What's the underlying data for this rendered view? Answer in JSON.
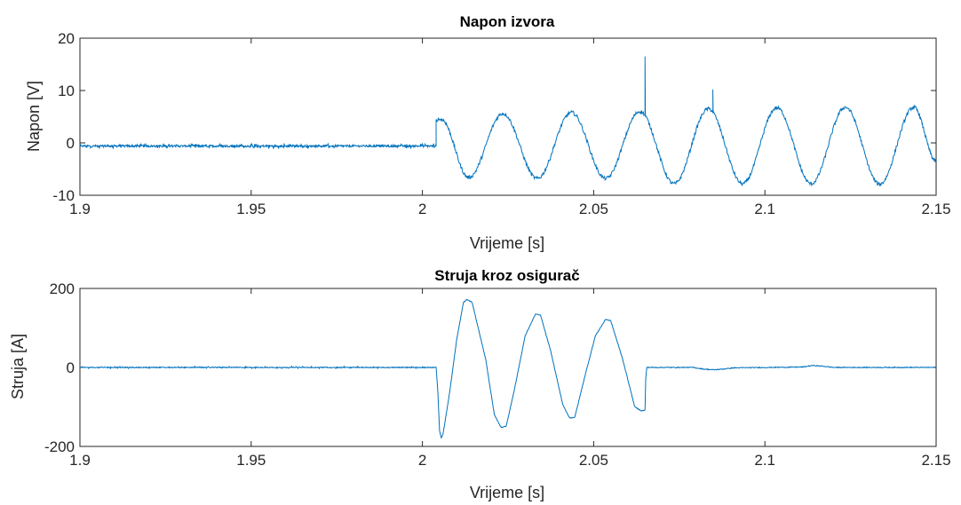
{
  "chart_data": [
    {
      "type": "line",
      "title": "Napon izvora",
      "xlabel": "Vrijeme [s]",
      "ylabel": "Napon [V]",
      "xlim": [
        1.9,
        2.15
      ],
      "ylim": [
        -10,
        20
      ],
      "xticks": [
        "1.9",
        "1.95",
        "2",
        "2.05",
        "2.1",
        "2.15"
      ],
      "yticks": [
        "-10",
        "0",
        "10",
        "20"
      ],
      "grid": false,
      "line_color": "#0072BD",
      "series": [
        {
          "pre_event": {
            "x_start": 1.9,
            "x_end": 2.004,
            "level": -0.6,
            "noise": 0.4
          },
          "event_jump": {
            "x": 2.004,
            "to": 4.5,
            "hold_until": 2.0055
          },
          "oscillation": {
            "x_start": 2.0055,
            "x_end": 2.15,
            "period": 0.02,
            "peaks": [
              {
                "x": 2.0235,
                "y": 5.6
              },
              {
                "x": 2.0435,
                "y": 5.8
              },
              {
                "x": 2.0635,
                "y": 6.0
              },
              {
                "x": 2.0835,
                "y": 6.5
              },
              {
                "x": 2.1035,
                "y": 6.7
              },
              {
                "x": 2.1235,
                "y": 6.8
              },
              {
                "x": 2.1435,
                "y": 6.8
              }
            ],
            "troughs": [
              {
                "x": 2.0135,
                "y": -6.6
              },
              {
                "x": 2.0335,
                "y": -6.8
              },
              {
                "x": 2.0535,
                "y": -6.8
              },
              {
                "x": 2.0735,
                "y": -7.8
              },
              {
                "x": 2.0935,
                "y": -7.8
              },
              {
                "x": 2.1135,
                "y": -7.8
              },
              {
                "x": 2.1335,
                "y": -7.9
              }
            ],
            "end_value": -3.5
          },
          "spikes": [
            {
              "x": 2.065,
              "y": 16.5
            },
            {
              "x": 2.0848,
              "y": 10.2
            }
          ]
        }
      ]
    },
    {
      "type": "line",
      "title": "Struja kroz osigurač",
      "xlabel": "Vrijeme [s]",
      "ylabel": "Struja [A]",
      "xlim": [
        1.9,
        2.15
      ],
      "ylim": [
        -200,
        200
      ],
      "xticks": [
        "1.9",
        "1.95",
        "2",
        "2.05",
        "2.1",
        "2.15"
      ],
      "yticks": [
        "-200",
        "0",
        "200"
      ],
      "grid": false,
      "line_color": "#0072BD",
      "series": [
        {
          "pre_event": {
            "x_start": 1.9,
            "x_end": 2.004,
            "level": 0,
            "noise": 2
          },
          "points": [
            [
              2.004,
              0
            ],
            [
              2.0045,
              -60
            ],
            [
              2.005,
              -160
            ],
            [
              2.0055,
              -178
            ],
            [
              2.006,
              -170
            ],
            [
              2.008,
              -60
            ],
            [
              2.01,
              70
            ],
            [
              2.012,
              165
            ],
            [
              2.013,
              172
            ],
            [
              2.0145,
              165
            ],
            [
              2.0185,
              20
            ],
            [
              2.021,
              -120
            ],
            [
              2.023,
              -152
            ],
            [
              2.0245,
              -148
            ],
            [
              2.027,
              -50
            ],
            [
              2.03,
              80
            ],
            [
              2.033,
              135
            ],
            [
              2.0345,
              132
            ],
            [
              2.0375,
              40
            ],
            [
              2.041,
              -95
            ],
            [
              2.043,
              -128
            ],
            [
              2.0445,
              -126
            ],
            [
              2.0475,
              -20
            ],
            [
              2.0505,
              80
            ],
            [
              2.0535,
              122
            ],
            [
              2.055,
              118
            ],
            [
              2.0585,
              20
            ],
            [
              2.062,
              -100
            ],
            [
              2.064,
              -110
            ],
            [
              2.065,
              -108
            ],
            [
              2.0652,
              -30
            ],
            [
              2.0655,
              0
            ],
            [
              2.079,
              0
            ],
            [
              2.082,
              -4
            ],
            [
              2.085,
              -6
            ],
            [
              2.088,
              -4
            ],
            [
              2.091,
              -1
            ],
            [
              2.111,
              1
            ],
            [
              2.114,
              5
            ],
            [
              2.117,
              3
            ],
            [
              2.12,
              0
            ],
            [
              2.15,
              0
            ]
          ]
        }
      ]
    }
  ]
}
